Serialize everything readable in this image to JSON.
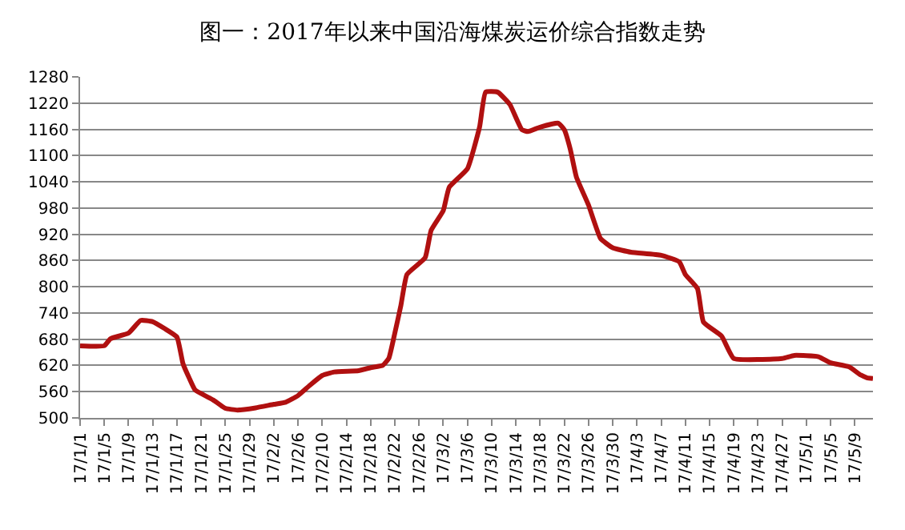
{
  "chart_data": {
    "type": "line",
    "title": "图一：2017年以来中国沿海煤炭运价综合指数走势",
    "x": [
      "2017-01-01",
      "2017-01-05",
      "2017-01-06",
      "2017-01-09",
      "2017-01-11",
      "2017-01-13",
      "2017-01-15",
      "2017-01-17",
      "2017-01-18",
      "2017-01-19",
      "2017-01-20",
      "2017-01-23",
      "2017-01-25",
      "2017-01-27",
      "2017-01-30",
      "2017-02-02",
      "2017-02-04",
      "2017-02-06",
      "2017-02-08",
      "2017-02-10",
      "2017-02-12",
      "2017-02-16",
      "2017-02-18",
      "2017-02-20",
      "2017-02-21",
      "2017-02-22",
      "2017-02-23",
      "2017-02-24",
      "2017-02-27",
      "2017-02-28",
      "2017-03-02",
      "2017-03-03",
      "2017-03-06",
      "2017-03-08",
      "2017-03-09",
      "2017-03-11",
      "2017-03-13",
      "2017-03-15",
      "2017-03-16",
      "2017-03-18",
      "2017-03-21",
      "2017-03-22",
      "2017-03-23",
      "2017-03-24",
      "2017-03-26",
      "2017-03-28",
      "2017-03-30",
      "2017-04-02",
      "2017-04-07",
      "2017-04-10",
      "2017-04-11",
      "2017-04-13",
      "2017-04-14",
      "2017-04-17",
      "2017-04-19",
      "2017-04-27",
      "2017-04-29",
      "2017-05-03",
      "2017-05-05",
      "2017-05-08",
      "2017-05-10",
      "2017-05-11",
      "2017-05-12"
    ],
    "series": [
      {
        "color": "#b01010",
        "values": [
          665,
          665,
          681,
          694,
          723,
          720,
          704,
          685,
          624,
          592,
          564,
          541,
          522,
          518,
          523,
          531,
          536,
          551,
          575,
          597,
          605,
          608,
          615,
          620,
          636,
          694,
          757,
          828,
          866,
          929,
          974,
          1028,
          1070,
          1165,
          1245,
          1245,
          1217,
          1159,
          1155,
          1165,
          1174,
          1159,
          1114,
          1051,
          987,
          910,
          889,
          879,
          872,
          857,
          828,
          796,
          719,
          687,
          636,
          636,
          643,
          640,
          626,
          617,
          598,
          592,
          590
        ]
      }
    ],
    "xlim": [
      "2017-01-01",
      "2017-05-12"
    ],
    "xticks": [
      {
        "value": "2017-01-01",
        "label": "17/1/1"
      },
      {
        "value": "2017-01-05",
        "label": "17/1/5"
      },
      {
        "value": "2017-01-09",
        "label": "17/1/9"
      },
      {
        "value": "2017-01-13",
        "label": "17/1/13"
      },
      {
        "value": "2017-01-17",
        "label": "17/1/17"
      },
      {
        "value": "2017-01-21",
        "label": "17/1/21"
      },
      {
        "value": "2017-01-25",
        "label": "17/1/25"
      },
      {
        "value": "2017-01-29",
        "label": "17/1/29"
      },
      {
        "value": "2017-02-02",
        "label": "17/2/2"
      },
      {
        "value": "2017-02-06",
        "label": "17/2/6"
      },
      {
        "value": "2017-02-10",
        "label": "17/2/10"
      },
      {
        "value": "2017-02-14",
        "label": "17/2/14"
      },
      {
        "value": "2017-02-18",
        "label": "17/2/18"
      },
      {
        "value": "2017-02-22",
        "label": "17/2/22"
      },
      {
        "value": "2017-02-26",
        "label": "17/2/26"
      },
      {
        "value": "2017-03-02",
        "label": "17/3/2"
      },
      {
        "value": "2017-03-06",
        "label": "17/3/6"
      },
      {
        "value": "2017-03-10",
        "label": "17/3/10"
      },
      {
        "value": "2017-03-14",
        "label": "17/3/14"
      },
      {
        "value": "2017-03-18",
        "label": "17/3/18"
      },
      {
        "value": "2017-03-22",
        "label": "17/3/22"
      },
      {
        "value": "2017-03-26",
        "label": "17/3/26"
      },
      {
        "value": "2017-03-30",
        "label": "17/3/30"
      },
      {
        "value": "2017-04-03",
        "label": "17/4/3"
      },
      {
        "value": "2017-04-07",
        "label": "17/4/7"
      },
      {
        "value": "2017-04-11",
        "label": "17/4/11"
      },
      {
        "value": "2017-04-15",
        "label": "17/4/15"
      },
      {
        "value": "2017-04-19",
        "label": "17/4/19"
      },
      {
        "value": "2017-04-23",
        "label": "17/4/23"
      },
      {
        "value": "2017-04-27",
        "label": "17/4/27"
      },
      {
        "value": "2017-05-01",
        "label": "17/5/1"
      },
      {
        "value": "2017-05-05",
        "label": "17/5/5"
      },
      {
        "value": "2017-05-09",
        "label": "17/5/9"
      }
    ],
    "ylim": [
      500,
      1280
    ],
    "yticks": [
      500,
      560,
      620,
      680,
      740,
      800,
      860,
      920,
      980,
      1040,
      1100,
      1160,
      1220,
      1280
    ],
    "grid": "y",
    "marker": "none",
    "line_style": "solid"
  }
}
